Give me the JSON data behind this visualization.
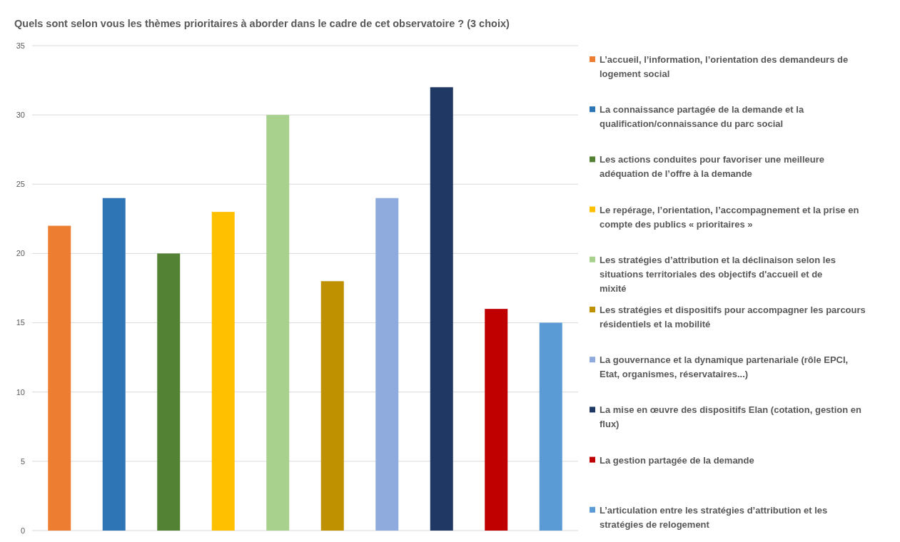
{
  "chart_data": {
    "type": "bar",
    "title": "Quels sont selon vous les thèmes prioritaires à aborder dans le cadre de cet observatoire ? (3 choix)",
    "categories": [
      null
    ],
    "series": [
      {
        "name": "L’accueil,  l’information, l’orientation des demandeurs de logement social",
        "color": "#ed7d31",
        "values": [
          22
        ]
      },
      {
        "name": "La connaissance partagée de la demande et la qualification/connaissance du parc social",
        "color": "#2e75b6",
        "values": [
          24
        ]
      },
      {
        "name": "Les actions conduites pour favoriser une meilleure adéquation de l’offre à la demande",
        "color": "#548235",
        "values": [
          20
        ]
      },
      {
        "name": "Le repérage, l’orientation, l’accompagnement et la prise en compte des publics « prioritaires »",
        "color": "#ffc000",
        "values": [
          23
        ]
      },
      {
        "name": "Les stratégies d’attribution et la déclinaison selon les situations territoriales des objectifs d'accueil et de mixité",
        "color": "#a9d18e",
        "values": [
          30
        ]
      },
      {
        "name": "Les stratégies et dispositifs pour accompagner les parcours résidentiels et la mobilité",
        "color": "#bf9000",
        "values": [
          18
        ]
      },
      {
        "name": "La gouvernance et la dynamique partenariale (rôle EPCI, Etat, organismes, réservataires...)",
        "color": "#8faadc",
        "values": [
          24
        ]
      },
      {
        "name": "La mise en œuvre des dispositifs Elan (cotation, gestion en flux)",
        "color": "#203864",
        "values": [
          32
        ]
      },
      {
        "name": "La gestion partagée de la demande",
        "color": "#c00000",
        "values": [
          16
        ]
      },
      {
        "name": "L’articulation entre les stratégies d’attribution et les stratégies de relogement",
        "color": "#5b9bd5",
        "values": [
          15
        ]
      }
    ],
    "ylim": [
      0,
      35
    ],
    "yticks": [
      0,
      5,
      10,
      15,
      20,
      25,
      30,
      35
    ],
    "grid": "y",
    "legend": "right"
  }
}
